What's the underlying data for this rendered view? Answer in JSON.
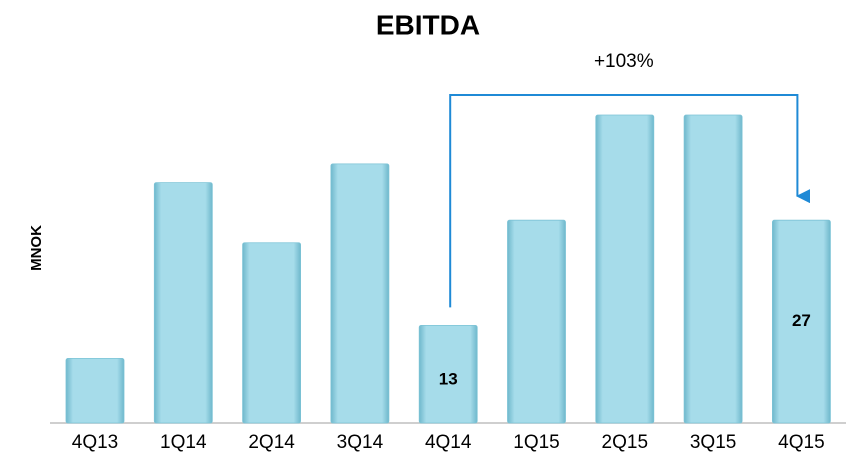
{
  "chart_data": {
    "type": "bar",
    "title": "EBITDA",
    "y_label": "MNOK",
    "categories": [
      "4Q13",
      "1Q14",
      "2Q14",
      "3Q14",
      "4Q14",
      "1Q15",
      "2Q15",
      "3Q15",
      "4Q15"
    ],
    "values": [
      8.6,
      32,
      24,
      34.5,
      13,
      27,
      41,
      41,
      27
    ],
    "value_labels": [
      null,
      null,
      null,
      null,
      "13",
      null,
      null,
      null,
      "27"
    ],
    "color": "#9dd8e8",
    "ylim": [
      0,
      43
    ],
    "annotation": {
      "text": "+103%",
      "from": 4,
      "to": 8,
      "color": "#1f8ad6"
    }
  }
}
